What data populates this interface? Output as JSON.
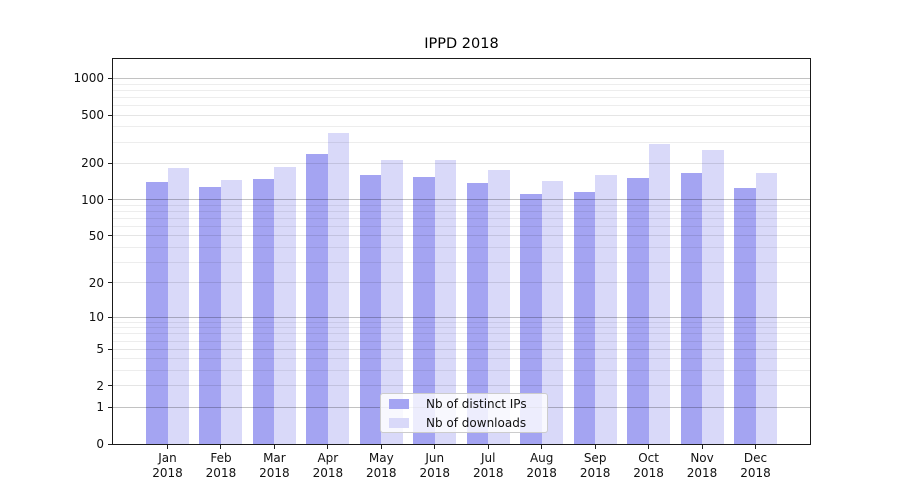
{
  "chart_data": {
    "type": "bar",
    "title": "IPPD 2018",
    "categories": [
      "Jan 2018",
      "Feb 2018",
      "Mar 2018",
      "Apr 2018",
      "May 2018",
      "Jun 2018",
      "Jul 2018",
      "Aug 2018",
      "Sep 2018",
      "Oct 2018",
      "Nov 2018",
      "Dec 2018"
    ],
    "series": [
      {
        "name": "Nb of distinct IPs",
        "color": "#a4a4f2",
        "values": [
          140,
          128,
          150,
          240,
          159,
          154,
          138,
          112,
          117,
          151,
          167,
          125
        ]
      },
      {
        "name": "Nb of downloads",
        "color": "#d9d9f9",
        "values": [
          185,
          146,
          188,
          355,
          213,
          214,
          175,
          143,
          159,
          287,
          259,
          168
        ]
      }
    ],
    "xlabel": "",
    "ylabel": "",
    "yscale": "log1p",
    "ylim": [
      0,
      1412
    ],
    "y_ticks": [
      0,
      1,
      2,
      5,
      10,
      20,
      50,
      100,
      200,
      500,
      1000
    ],
    "y_minor_ticks": [
      3,
      4,
      6,
      7,
      8,
      9,
      30,
      40,
      60,
      70,
      80,
      90,
      300,
      400,
      600,
      700,
      800,
      900
    ],
    "grid": "horizontal",
    "legend_position": "lower center"
  },
  "colors": {
    "axis": "#1a1a1a",
    "major_gridline": "rgba(0,0,0,0.24)",
    "tick_gridline": "rgba(0,0,0,0.10)",
    "minor_gridline": "rgba(0,0,0,0.07)"
  }
}
